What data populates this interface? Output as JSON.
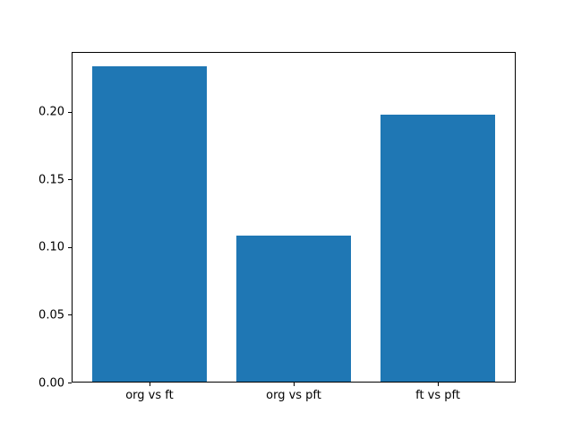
{
  "chart_data": {
    "type": "bar",
    "title": "",
    "xlabel": "",
    "ylabel": "",
    "categories": [
      "org vs ft",
      "org vs pft",
      "ft vs pft"
    ],
    "values": [
      0.233,
      0.108,
      0.197
    ],
    "ylim": [
      0,
      0.244
    ],
    "yticks": [
      {
        "value": 0.0,
        "label": "0.00"
      },
      {
        "value": 0.05,
        "label": "0.05"
      },
      {
        "value": 0.1,
        "label": "0.10"
      },
      {
        "value": 0.15,
        "label": "0.15"
      },
      {
        "value": 0.2,
        "label": "0.20"
      }
    ],
    "bar_color": "#1f77b4",
    "spine_color": "#000000",
    "text_color": "#000000",
    "background_color": "#ffffff",
    "grid": false,
    "legend": null,
    "bar_width_fraction": 0.8
  }
}
